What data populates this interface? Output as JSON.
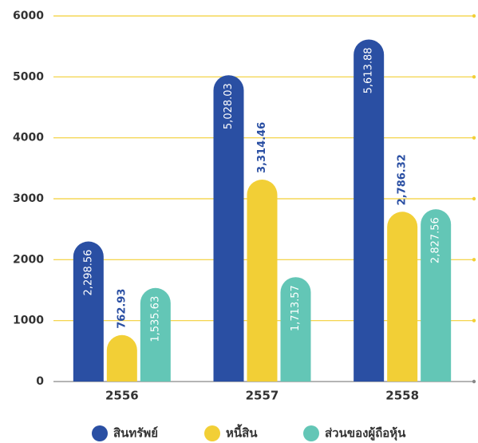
{
  "chart_data": {
    "type": "bar",
    "categories": [
      "2556",
      "2557",
      "2558"
    ],
    "series": [
      {
        "name": "สินทรัพย์",
        "color": "#2a4fa3",
        "label_position": "inside",
        "values": [
          2298.56,
          5028.03,
          5613.88
        ],
        "value_labels": [
          "2,298.56",
          "5,028.03",
          "5,613.88"
        ]
      },
      {
        "name": "หนี้สิน",
        "color": "#f2cf36",
        "label_position": "outside",
        "values": [
          762.93,
          3314.46,
          2786.32
        ],
        "value_labels": [
          "762.93",
          "3,314.46",
          "2,786.32"
        ]
      },
      {
        "name": "ส่วนของผู้ถือหุ้น",
        "color": "#63c6b6",
        "label_position": "inside",
        "values": [
          1535.63,
          1713.57,
          2827.56
        ],
        "value_labels": [
          "1,535.63",
          "1,713.57",
          "2,827.56"
        ]
      }
    ],
    "ylim": [
      0,
      6000
    ],
    "yticks": [
      0,
      1000,
      2000,
      3000,
      4000,
      5000,
      6000
    ],
    "grid": true
  }
}
